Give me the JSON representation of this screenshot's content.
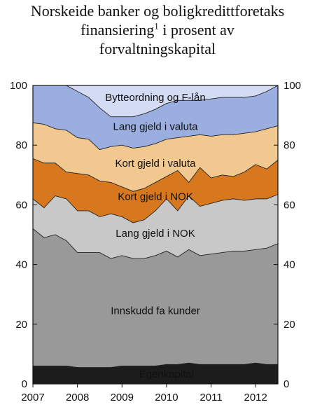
{
  "title": {
    "line1": "Norskeide banker og boligkredittforetaks",
    "line2_pre": "finansiering",
    "line2_sup": "1",
    "line2_post": " i prosent av",
    "line3": "forvaltningskapital"
  },
  "chart_data": {
    "type": "area",
    "stacked": true,
    "x": [
      2007.0,
      2007.25,
      2007.5,
      2007.75,
      2008.0,
      2008.25,
      2008.5,
      2008.75,
      2009.0,
      2009.25,
      2009.5,
      2009.75,
      2010.0,
      2010.25,
      2010.5,
      2010.75,
      2011.0,
      2011.25,
      2011.5,
      2011.75,
      2012.0,
      2012.25,
      2012.5
    ],
    "xlim": [
      2007.0,
      2012.5
    ],
    "ylim": [
      0,
      100
    ],
    "x_ticks": [
      "2007",
      "2008",
      "2009",
      "2010",
      "2011",
      "2012"
    ],
    "x_tick_values": [
      2007,
      2008,
      2009,
      2010,
      2011,
      2012
    ],
    "y_ticks": [
      "0",
      "20",
      "40",
      "60",
      "80",
      "100"
    ],
    "y_tick_values": [
      0,
      20,
      40,
      60,
      80,
      100
    ],
    "series": [
      {
        "name": "Egenkapital",
        "color": "#1c1c1c",
        "upper": [
          6,
          6,
          6,
          6,
          5.5,
          5.5,
          5.5,
          5.5,
          6,
          6,
          6,
          6,
          6.5,
          6.5,
          7,
          6.5,
          6.5,
          6.5,
          6.5,
          6.5,
          7,
          6.5,
          6.5
        ]
      },
      {
        "name": "Innskudd fa kunder",
        "color": "#999999",
        "upper": [
          52,
          49,
          50,
          48,
          44,
          44,
          44,
          42,
          43,
          42,
          42,
          43,
          44.5,
          42.5,
          45,
          43,
          43.5,
          44,
          44.5,
          44.5,
          45,
          45.5,
          47
        ]
      },
      {
        "name": "Lang gjeld i NOK",
        "color": "#c8c8c8",
        "upper": [
          62,
          59,
          63,
          62,
          58,
          58,
          56,
          57,
          56,
          54,
          55,
          58,
          62,
          58,
          63,
          59.5,
          60.5,
          61.5,
          62,
          61.5,
          62,
          62,
          63.5
        ]
      },
      {
        "name": "Kort gjeld i NOK",
        "color": "#d8781e",
        "upper": [
          75.5,
          74,
          74,
          71,
          70.5,
          70,
          68,
          67.5,
          66,
          64.5,
          65.5,
          67.5,
          69.5,
          71.5,
          67.5,
          72.5,
          69,
          70,
          69.5,
          71,
          73.5,
          72,
          75
        ]
      },
      {
        "name": "Kort gjeld i valuta",
        "color": "#f0c890",
        "upper": [
          87.5,
          87,
          85.5,
          85,
          82.5,
          82,
          78.5,
          79.5,
          80,
          79,
          79.5,
          80.5,
          82,
          82.5,
          83,
          83.5,
          83,
          83.5,
          83.5,
          84,
          84.5,
          85.5,
          86.5
        ]
      },
      {
        "name": "Lang gjeld i valuta",
        "color": "#9aaee0",
        "upper": [
          100,
          100,
          100,
          100,
          98,
          96,
          92.5,
          89.5,
          89.5,
          89.5,
          90.5,
          92,
          94,
          95,
          95,
          95,
          95.5,
          96,
          96,
          96,
          96.5,
          98,
          100
        ]
      },
      {
        "name": "Bytteordning og F-lån",
        "color": "#d4dcf4",
        "upper": [
          100,
          100,
          100,
          100,
          100,
          100,
          100,
          100,
          100,
          100,
          100,
          100,
          100,
          100,
          100,
          100,
          100,
          100,
          100,
          100,
          100,
          100,
          100
        ]
      }
    ]
  }
}
